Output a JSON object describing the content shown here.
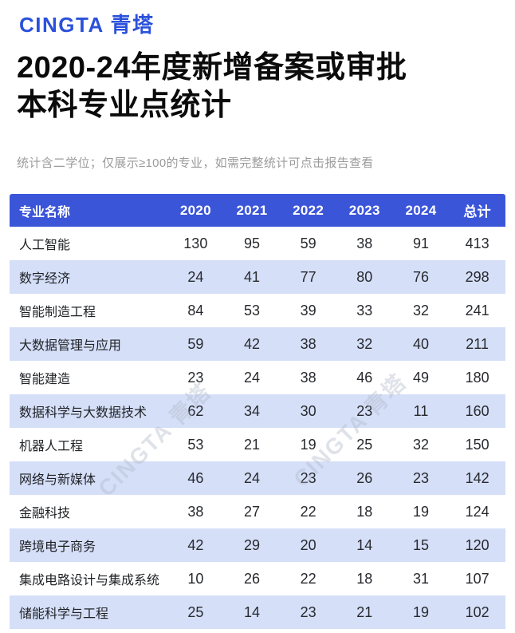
{
  "brand": {
    "logo": "CINGTA 青塔"
  },
  "header": {
    "title_line1": "2020-24年度新增备案或审批",
    "title_line2": "本科专业点统计",
    "subtitle": "统计含二学位；仅展示≥100的专业，如需完整统计可点击报告查看"
  },
  "watermark": {
    "text": "CINGTA 青塔"
  },
  "colors": {
    "brand_blue": "#2B51DB",
    "table_header_bg": "#3B55D9",
    "table_header_text": "#FFFFFF",
    "row_alt_bg": "#D5DFF8",
    "title_color": "#0B0B0C",
    "subtitle_color": "#9B9B9B",
    "watermark_color": "#AEB6C6"
  },
  "chart_data": {
    "type": "table",
    "title": "2020-24年度新增备案或审批本科专业点统计",
    "subtitle": "统计含二学位；仅展示≥100的专业，如需完整统计可点击报告查看",
    "columns": [
      "专业名称",
      "2020",
      "2021",
      "2022",
      "2023",
      "2024",
      "总计"
    ],
    "rows": [
      [
        "人工智能",
        130,
        95,
        59,
        38,
        91,
        413
      ],
      [
        "数字经济",
        24,
        41,
        77,
        80,
        76,
        298
      ],
      [
        "智能制造工程",
        84,
        53,
        39,
        33,
        32,
        241
      ],
      [
        "大数据管理与应用",
        59,
        42,
        38,
        32,
        40,
        211
      ],
      [
        "智能建造",
        23,
        24,
        38,
        46,
        49,
        180
      ],
      [
        "数据科学与大数据技术",
        62,
        34,
        30,
        23,
        11,
        160
      ],
      [
        "机器人工程",
        53,
        21,
        19,
        25,
        32,
        150
      ],
      [
        "网络与新媒体",
        46,
        24,
        23,
        26,
        23,
        142
      ],
      [
        "金融科技",
        38,
        27,
        22,
        18,
        19,
        124
      ],
      [
        "跨境电子商务",
        42,
        29,
        20,
        14,
        15,
        120
      ],
      [
        "集成电路设计与集成系统",
        10,
        26,
        22,
        18,
        31,
        107
      ],
      [
        "储能科学与工程",
        25,
        14,
        23,
        21,
        19,
        102
      ]
    ]
  }
}
